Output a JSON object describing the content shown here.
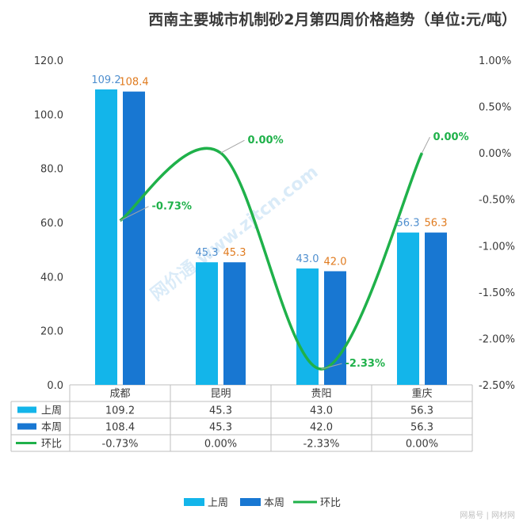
{
  "title": "西南主要城市机制砂2月第四周价格趋势（单位:元/吨）",
  "footer": "网易号 | 网材网",
  "watermark": "网价通 www.zjtcn.com",
  "colors": {
    "last_week": "#13b5ea",
    "this_week": "#1877d2",
    "change": "#1fb14a",
    "label_last": "#4f8fcf",
    "label_this": "#e07b1f",
    "axis_text": "#3a3a3a"
  },
  "chart_data": {
    "type": "bar",
    "title": "西南主要城市机制砂2月第四周价格趋势（单位:元/吨）",
    "categories": [
      "成都",
      "昆明",
      "贵阳",
      "重庆"
    ],
    "series": [
      {
        "name": "上周",
        "values": [
          109.2,
          45.3,
          43.0,
          56.3
        ],
        "labels": [
          "109.2",
          "45.3",
          "43.0",
          "56.3"
        ]
      },
      {
        "name": "本周",
        "values": [
          108.4,
          45.3,
          42.0,
          56.3
        ],
        "labels": [
          "108.4",
          "45.3",
          "42.0",
          "56.3"
        ]
      },
      {
        "name": "环比",
        "type": "line",
        "axis": "right",
        "values": [
          -0.73,
          0.0,
          -2.33,
          0.0
        ],
        "labels": [
          "-0.73%",
          "0.00%",
          "-2.33%",
          "0.00%"
        ]
      }
    ],
    "ylim": [
      0,
      120
    ],
    "yticks": [
      "0.0",
      "20.0",
      "40.0",
      "60.0",
      "80.0",
      "100.0",
      "120.0"
    ],
    "y2lim": [
      -2.5,
      1.0
    ],
    "y2ticks": [
      "-2.50%",
      "-2.00%",
      "-1.50%",
      "-1.00%",
      "-0.50%",
      "0.00%",
      "0.50%",
      "1.00%"
    ],
    "table": {
      "rows": [
        {
          "name": "上周",
          "cells": [
            "109.2",
            "45.3",
            "43.0",
            "56.3"
          ]
        },
        {
          "name": "本周",
          "cells": [
            "108.4",
            "45.3",
            "42.0",
            "56.3"
          ]
        },
        {
          "name": "环比",
          "cells": [
            "-0.73%",
            "0.00%",
            "-2.33%",
            "0.00%"
          ]
        }
      ]
    },
    "legend": {
      "items": [
        "上周",
        "本周",
        "环比"
      ],
      "position": "bottom"
    },
    "grid": false
  }
}
